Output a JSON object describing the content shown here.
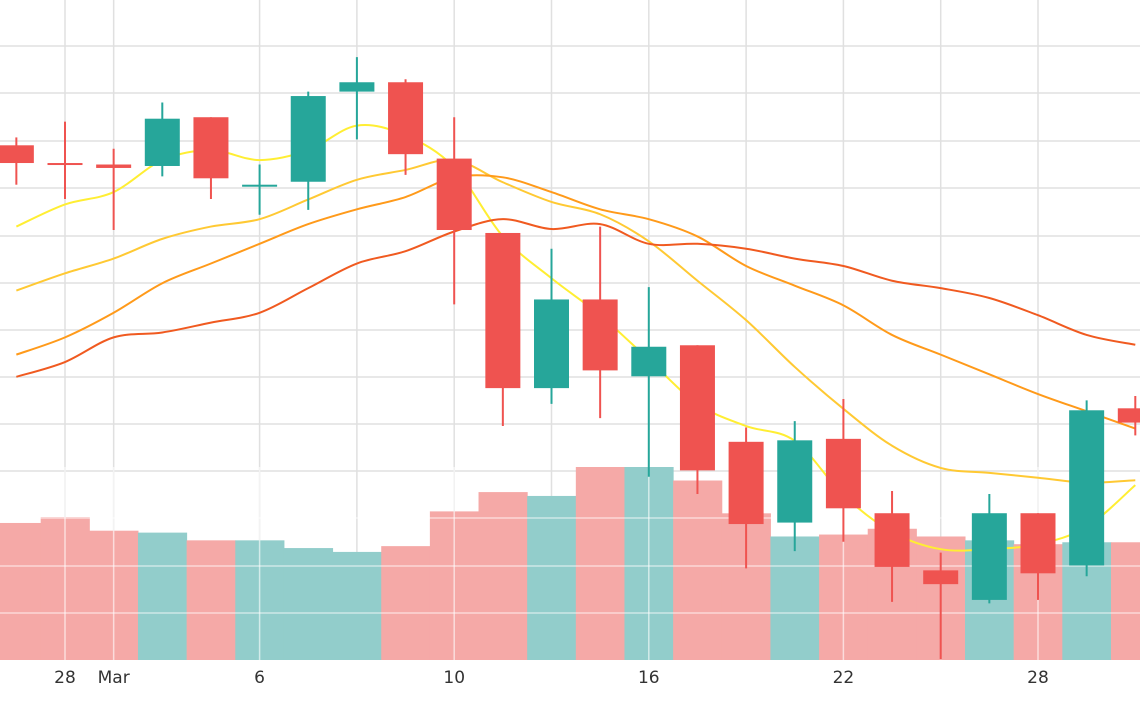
{
  "chart_data": {
    "type": "candlestick",
    "title": "",
    "xlabel": "",
    "ylabel": "",
    "grid": true,
    "legend": "none",
    "x_ticks": [
      {
        "x": 26.6,
        "label": "28"
      },
      {
        "x": 27.6,
        "label": "Mar"
      },
      {
        "x": 30.6,
        "label": "6"
      },
      {
        "x": 34.6,
        "label": "10"
      },
      {
        "x": 38.6,
        "label": "16"
      },
      {
        "x": 42.6,
        "label": "22"
      },
      {
        "x": 46.6,
        "label": "28"
      }
    ],
    "price_range": [
      120,
      254
    ],
    "candles": [
      {
        "x": 25.6,
        "open": 224.5,
        "high": 226.1,
        "low": 216.5,
        "close": 220.9
      },
      {
        "x": 26.6,
        "open": 220.9,
        "high": 229.3,
        "low": 213.6,
        "close": 220.6
      },
      {
        "x": 27.6,
        "open": 220.6,
        "high": 223.8,
        "low": 207.3,
        "close": 219.9
      },
      {
        "x": 28.6,
        "open": 220.3,
        "high": 233.2,
        "low": 218.2,
        "close": 229.9
      },
      {
        "x": 29.6,
        "open": 230.2,
        "high": 230.2,
        "low": 213.6,
        "close": 217.8
      },
      {
        "x": 30.6,
        "open": 216.5,
        "high": 220.6,
        "low": 210.4,
        "close": 216.5
      },
      {
        "x": 31.6,
        "open": 217.1,
        "high": 235.4,
        "low": 211.4,
        "close": 234.5
      },
      {
        "x": 32.6,
        "open": 235.4,
        "high": 242.4,
        "low": 225.7,
        "close": 237.3
      },
      {
        "x": 33.6,
        "open": 237.3,
        "high": 237.9,
        "low": 218.5,
        "close": 222.7
      },
      {
        "x": 34.6,
        "open": 221.8,
        "high": 230.2,
        "low": 192.2,
        "close": 207.3
      },
      {
        "x": 35.6,
        "open": 206.7,
        "high": 206.7,
        "low": 167.5,
        "close": 175.2
      },
      {
        "x": 36.6,
        "open": 175.2,
        "high": 203.5,
        "low": 172.0,
        "close": 193.2
      },
      {
        "x": 37.6,
        "open": 193.2,
        "high": 208.0,
        "low": 169.1,
        "close": 178.8
      },
      {
        "x": 38.6,
        "open": 177.6,
        "high": 195.7,
        "low": 157.2,
        "close": 183.6
      },
      {
        "x": 39.6,
        "open": 183.9,
        "high": 183.9,
        "low": 153.7,
        "close": 158.5
      },
      {
        "x": 40.6,
        "open": 164.3,
        "high": 167.2,
        "low": 138.6,
        "close": 147.6
      },
      {
        "x": 41.6,
        "open": 147.9,
        "high": 168.5,
        "low": 142.1,
        "close": 164.6
      },
      {
        "x": 42.6,
        "open": 164.9,
        "high": 173.0,
        "low": 144.0,
        "close": 150.8
      },
      {
        "x": 43.6,
        "open": 149.8,
        "high": 154.3,
        "low": 131.8,
        "close": 138.9
      },
      {
        "x": 44.6,
        "open": 138.2,
        "high": 141.8,
        "low": 120.2,
        "close": 135.4
      },
      {
        "x": 45.6,
        "open": 132.2,
        "high": 153.7,
        "low": 131.5,
        "close": 149.8
      },
      {
        "x": 46.6,
        "open": 149.8,
        "high": 149.8,
        "low": 132.2,
        "close": 137.6
      },
      {
        "x": 47.6,
        "open": 139.2,
        "high": 172.7,
        "low": 137.0,
        "close": 170.7
      },
      {
        "x": 48.6,
        "open": 171.1,
        "high": 173.6,
        "low": 165.6,
        "close": 168.2
      }
    ],
    "volume_range": [
      0,
      100
    ],
    "volumes": [
      {
        "x": 25.6,
        "value": 71,
        "dir": "down"
      },
      {
        "x": 26.6,
        "value": 74,
        "dir": "down"
      },
      {
        "x": 27.6,
        "value": 67,
        "dir": "down"
      },
      {
        "x": 28.6,
        "value": 66,
        "dir": "up"
      },
      {
        "x": 29.6,
        "value": 62,
        "dir": "down"
      },
      {
        "x": 30.6,
        "value": 62,
        "dir": "up"
      },
      {
        "x": 31.6,
        "value": 58,
        "dir": "up"
      },
      {
        "x": 32.6,
        "value": 56,
        "dir": "up"
      },
      {
        "x": 33.6,
        "value": 59,
        "dir": "down"
      },
      {
        "x": 34.6,
        "value": 77,
        "dir": "down"
      },
      {
        "x": 35.6,
        "value": 87,
        "dir": "down"
      },
      {
        "x": 36.6,
        "value": 85,
        "dir": "up"
      },
      {
        "x": 37.6,
        "value": 100,
        "dir": "down"
      },
      {
        "x": 38.6,
        "value": 100,
        "dir": "up"
      },
      {
        "x": 39.6,
        "value": 93,
        "dir": "down"
      },
      {
        "x": 40.6,
        "value": 76,
        "dir": "down"
      },
      {
        "x": 41.6,
        "value": 64,
        "dir": "up"
      },
      {
        "x": 42.6,
        "value": 65,
        "dir": "down"
      },
      {
        "x": 43.6,
        "value": 68,
        "dir": "down"
      },
      {
        "x": 44.6,
        "value": 64,
        "dir": "down"
      },
      {
        "x": 45.6,
        "value": 62,
        "dir": "up"
      },
      {
        "x": 46.6,
        "value": 60,
        "dir": "down"
      },
      {
        "x": 47.6,
        "value": 61,
        "dir": "up"
      },
      {
        "x": 48.6,
        "value": 61,
        "dir": "down"
      }
    ],
    "moving_averages": [
      {
        "color": "#ffee33",
        "x": [
          25.6,
          26.6,
          27.6,
          28.6,
          29.6,
          30.6,
          31.6,
          32.6,
          33.6,
          34.6,
          35.6,
          36.6,
          37.6,
          38.6,
          39.6,
          40.6,
          41.6,
          42.6,
          43.6,
          44.6,
          45.6,
          46.6,
          47.6,
          48.6
        ],
        "values": [
          208.0,
          212.5,
          215.0,
          221.5,
          223.5,
          221.5,
          223.5,
          228.5,
          226.5,
          220.0,
          206.0,
          197.5,
          190.0,
          181.0,
          172.0,
          167.5,
          164.5,
          153.5,
          146.0,
          142.5,
          142.5,
          143.5,
          147.0,
          155.5
        ]
      },
      {
        "color": "#ffc933",
        "x": [
          25.6,
          26.6,
          27.6,
          28.6,
          29.6,
          30.6,
          31.6,
          32.6,
          33.6,
          34.6,
          35.6,
          36.6,
          37.6,
          38.6,
          39.6,
          40.6,
          41.6,
          42.6,
          43.6,
          44.6,
          45.6,
          46.6,
          47.6,
          48.6
        ],
        "values": [
          195.0,
          198.5,
          201.5,
          205.5,
          208.0,
          209.5,
          213.5,
          217.5,
          219.5,
          221.5,
          217.0,
          213.0,
          210.5,
          205.0,
          197.0,
          189.0,
          179.5,
          171.0,
          163.5,
          159.0,
          158.0,
          157.0,
          156.0,
          156.5
        ]
      },
      {
        "color": "#ff9a1a",
        "x": [
          25.6,
          26.6,
          27.6,
          28.6,
          29.6,
          30.6,
          31.6,
          32.6,
          33.6,
          34.6,
          35.6,
          36.6,
          37.6,
          38.6,
          39.6,
          40.6,
          41.6,
          42.6,
          43.6,
          44.6,
          45.6,
          46.6,
          47.6,
          48.6
        ],
        "values": [
          182.0,
          185.5,
          190.5,
          196.5,
          200.5,
          204.5,
          208.5,
          211.5,
          214.0,
          218.0,
          218.0,
          215.0,
          211.5,
          209.5,
          206.0,
          200.0,
          196.0,
          192.0,
          186.0,
          182.0,
          178.0,
          174.0,
          170.5,
          167.0
        ]
      },
      {
        "color": "#f05a20",
        "x": [
          25.6,
          26.6,
          27.6,
          28.6,
          29.6,
          30.6,
          31.6,
          32.6,
          33.6,
          34.6,
          35.6,
          36.6,
          37.6,
          38.6,
          39.6,
          40.6,
          41.6,
          42.6,
          43.6,
          44.6,
          45.6,
          46.6,
          47.6,
          48.6
        ],
        "values": [
          177.5,
          180.5,
          185.5,
          186.5,
          188.5,
          190.5,
          195.5,
          200.5,
          203.0,
          207.0,
          209.5,
          207.5,
          208.5,
          204.5,
          204.5,
          203.5,
          201.5,
          200.0,
          197.0,
          195.5,
          193.5,
          190.0,
          186.0,
          184.0
        ]
      }
    ],
    "colors": {
      "up": "#26a69a",
      "down": "#ef5350",
      "vol_up": "#92cdcb",
      "vol_down": "#f5a9a7",
      "grid": "#e0e0e0"
    }
  }
}
